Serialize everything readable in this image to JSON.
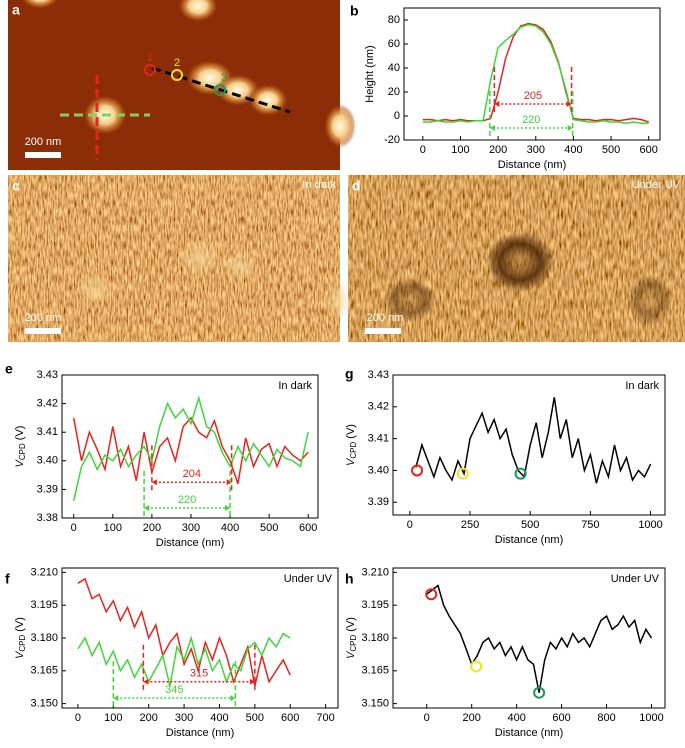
{
  "images": {
    "a": {
      "panel": "a",
      "scale_bar": "200 nm",
      "points": [
        "1",
        "2",
        "3"
      ]
    },
    "c": {
      "panel": "c",
      "note": "In dark",
      "scale_bar": "200 nm"
    },
    "d": {
      "panel": "d",
      "note": "Under UV",
      "scale_bar": "200 nm"
    }
  },
  "chart_data": [
    {
      "type": "line",
      "panel": "b",
      "xlabel": "Distance (nm)",
      "ylabel": "Height (nm)",
      "xlim": [
        -50,
        630
      ],
      "ylim": [
        -20,
        90
      ],
      "xticks": [
        0,
        100,
        200,
        300,
        400,
        500,
        600
      ],
      "yticks": [
        -20,
        0,
        20,
        40,
        60,
        80
      ],
      "x": [
        0,
        20,
        40,
        60,
        80,
        100,
        120,
        140,
        160,
        180,
        200,
        220,
        240,
        260,
        280,
        300,
        320,
        340,
        360,
        380,
        400,
        420,
        440,
        460,
        480,
        500,
        520,
        540,
        560,
        580,
        600
      ],
      "series": [
        {
          "color": "#e8231f",
          "values": [
            -3,
            -3,
            -4,
            -3,
            -4,
            -3,
            -4,
            -4,
            -4,
            -2,
            20,
            48,
            66,
            75,
            77,
            76,
            72,
            62,
            45,
            20,
            -2,
            -3,
            -3,
            -4,
            -3,
            -3,
            -4,
            -3,
            -2,
            -3,
            -5
          ]
        },
        {
          "color": "#3ed63a",
          "values": [
            -5,
            -5,
            -4,
            -5,
            -5,
            -4,
            -5,
            -4,
            -4,
            30,
            57,
            63,
            68,
            74,
            76,
            75,
            70,
            60,
            44,
            22,
            -3,
            -4,
            -5,
            -5,
            -4,
            -5,
            -5,
            -6,
            -5,
            -6,
            -6
          ]
        }
      ],
      "annotations": [
        {
          "width": 205,
          "x0": 190,
          "x1": 395,
          "y": 10,
          "color": "#e8231f"
        },
        {
          "width": 220,
          "x0": 178,
          "x1": 398,
          "y": -10,
          "color": "#3ed63a"
        }
      ]
    },
    {
      "type": "line",
      "panel": "e",
      "note": "In dark",
      "xlabel": "Distance (nm)",
      "ylabel": [
        "V",
        "CPD",
        "(V)"
      ],
      "xlim": [
        -30,
        625
      ],
      "ylim": [
        3.38,
        3.43
      ],
      "xticks": [
        0,
        100,
        200,
        300,
        400,
        500,
        600
      ],
      "yticks": [
        3.38,
        3.39,
        {
          "value": 3.4,
          "label": "3.40"
        },
        3.41,
        3.42,
        3.43
      ],
      "x": [
        0,
        20,
        40,
        60,
        80,
        100,
        120,
        140,
        160,
        180,
        200,
        220,
        240,
        260,
        280,
        300,
        320,
        340,
        360,
        380,
        400,
        420,
        440,
        460,
        480,
        500,
        520,
        540,
        560,
        580,
        600
      ],
      "series": [
        {
          "color": "#e8231f",
          "values": [
            3.415,
            3.4,
            3.41,
            3.404,
            3.397,
            3.412,
            3.398,
            3.405,
            3.393,
            3.41,
            3.396,
            3.405,
            3.408,
            3.4,
            3.412,
            3.415,
            3.41,
            3.408,
            3.414,
            3.405,
            3.4,
            3.392,
            3.408,
            3.398,
            3.404,
            3.406,
            3.398,
            3.405,
            3.402,
            3.4,
            3.403
          ]
        },
        {
          "color": "#3ed63a",
          "values": [
            3.386,
            3.398,
            3.403,
            3.397,
            3.402,
            3.4,
            3.404,
            3.398,
            3.402,
            3.405,
            3.4,
            3.412,
            3.42,
            3.415,
            3.418,
            3.413,
            3.422,
            3.412,
            3.41,
            3.403,
            3.398,
            3.405,
            3.4,
            3.406,
            3.402,
            3.398,
            3.404,
            3.401,
            3.4,
            3.398,
            3.41
          ]
        }
      ],
      "annotations": [
        {
          "width": 204,
          "x0": 200,
          "x1": 404,
          "y": 3.3925,
          "color": "#e8231f"
        },
        {
          "width": 220,
          "x0": 180,
          "x1": 400,
          "y": 3.3835,
          "color": "#3ed63a"
        }
      ]
    },
    {
      "type": "line",
      "panel": "g",
      "note": "In dark",
      "xlabel": "Distance (nm)",
      "ylabel": [
        "V",
        "CPD",
        "(V)"
      ],
      "xlim": [
        -70,
        1060
      ],
      "ylim": [
        3.386,
        3.43
      ],
      "xticks": [
        0,
        250,
        500,
        750,
        1000
      ],
      "yticks": [
        3.39,
        {
          "value": 3.4,
          "label": "3.40"
        },
        3.41,
        3.42,
        3.43
      ],
      "x": [
        25,
        50,
        75,
        100,
        125,
        150,
        175,
        200,
        225,
        250,
        275,
        300,
        325,
        350,
        375,
        400,
        425,
        450,
        475,
        500,
        525,
        550,
        575,
        600,
        625,
        650,
        675,
        700,
        725,
        750,
        775,
        800,
        825,
        850,
        875,
        900,
        925,
        950,
        975,
        1000
      ],
      "series": [
        {
          "color": "#000000",
          "values": [
            3.401,
            3.408,
            3.403,
            3.398,
            3.404,
            3.4,
            3.397,
            3.403,
            3.399,
            3.41,
            3.414,
            3.418,
            3.412,
            3.416,
            3.41,
            3.413,
            3.405,
            3.4,
            3.398,
            3.408,
            3.415,
            3.404,
            3.412,
            3.423,
            3.41,
            3.416,
            3.404,
            3.41,
            3.4,
            3.405,
            3.396,
            3.403,
            3.398,
            3.408,
            3.4,
            3.404,
            3.397,
            3.4,
            3.398,
            3.402
          ]
        }
      ],
      "markers": [
        {
          "x": 30,
          "y": 3.4,
          "color": "#e8231f"
        },
        {
          "x": 220,
          "y": 3.399,
          "color": "#f2e21b"
        },
        {
          "x": 460,
          "y": 3.399,
          "color": "#1a9a5a"
        }
      ]
    },
    {
      "type": "line",
      "panel": "f",
      "note": "Under UV",
      "xlabel": "Distance (nm)",
      "ylabel": [
        "V",
        "CPD",
        "(V)"
      ],
      "xlim": [
        -45,
        735
      ],
      "ylim": [
        3.148,
        3.212
      ],
      "xticks": [
        0,
        100,
        200,
        300,
        400,
        500,
        600,
        700
      ],
      "yticks": [
        {
          "value": 3.15,
          "label": "3.150"
        },
        3.165,
        {
          "value": 3.18,
          "label": "3.180"
        },
        3.195,
        {
          "value": 3.21,
          "label": "3.210"
        }
      ],
      "x": [
        0,
        20,
        40,
        60,
        80,
        100,
        120,
        140,
        160,
        180,
        200,
        220,
        240,
        260,
        280,
        300,
        320,
        340,
        360,
        380,
        400,
        420,
        440,
        460,
        480,
        500,
        520,
        540,
        560,
        580,
        600
      ],
      "series": [
        {
          "color": "#e8231f",
          "values": [
            3.205,
            3.207,
            3.198,
            3.2,
            3.192,
            3.197,
            3.188,
            3.194,
            3.185,
            3.192,
            3.18,
            3.186,
            3.172,
            3.178,
            3.182,
            3.168,
            3.175,
            3.165,
            3.178,
            3.17,
            3.18,
            3.172,
            3.16,
            3.168,
            3.176,
            3.158,
            3.172,
            3.16,
            3.165,
            3.17,
            3.163
          ]
        },
        {
          "color": "#3ed63a",
          "values": [
            3.175,
            3.18,
            3.172,
            3.178,
            3.168,
            3.174,
            3.165,
            3.17,
            3.162,
            3.168,
            3.16,
            3.166,
            3.172,
            3.158,
            3.176,
            3.17,
            3.18,
            3.168,
            3.175,
            3.165,
            3.17,
            3.16,
            3.168,
            3.165,
            3.175,
            3.178,
            3.172,
            3.18,
            3.176,
            3.182,
            3.18
          ]
        }
      ],
      "annotations": [
        {
          "width": 315,
          "x0": 185,
          "x1": 500,
          "y": 3.16,
          "color": "#e8231f"
        },
        {
          "width": 345,
          "x0": 100,
          "x1": 445,
          "y": 3.1525,
          "color": "#3ed63a"
        }
      ]
    },
    {
      "type": "line",
      "panel": "h",
      "note": "Under UV",
      "xlabel": "Distance (nm)",
      "ylabel": [
        "V",
        "CPD",
        "(V)"
      ],
      "xlim": [
        -150,
        1060
      ],
      "ylim": [
        3.148,
        3.212
      ],
      "xticks": [
        0,
        200,
        400,
        600,
        800,
        1000
      ],
      "yticks": [
        {
          "value": 3.15,
          "label": "3.150"
        },
        3.165,
        {
          "value": 3.18,
          "label": "3.180"
        },
        3.195,
        {
          "value": 3.21,
          "label": "3.210"
        }
      ],
      "x": [
        0,
        25,
        50,
        75,
        100,
        125,
        150,
        175,
        200,
        225,
        250,
        275,
        300,
        325,
        350,
        375,
        400,
        425,
        450,
        475,
        500,
        525,
        550,
        575,
        600,
        625,
        650,
        675,
        700,
        725,
        750,
        775,
        800,
        825,
        850,
        875,
        900,
        925,
        950,
        975,
        1000
      ],
      "series": [
        {
          "color": "#000000",
          "values": [
            3.2,
            3.202,
            3.204,
            3.195,
            3.19,
            3.186,
            3.182,
            3.175,
            3.168,
            3.172,
            3.178,
            3.18,
            3.175,
            3.178,
            3.172,
            3.176,
            3.17,
            3.176,
            3.17,
            3.168,
            3.155,
            3.17,
            3.178,
            3.175,
            3.18,
            3.176,
            3.182,
            3.178,
            3.18,
            3.176,
            3.182,
            3.188,
            3.19,
            3.184,
            3.186,
            3.19,
            3.185,
            3.188,
            3.178,
            3.184,
            3.18
          ]
        }
      ],
      "markers": [
        {
          "x": 20,
          "y": 3.2,
          "color": "#e8231f"
        },
        {
          "x": 220,
          "y": 3.167,
          "color": "#f2e21b"
        },
        {
          "x": 500,
          "y": 3.155,
          "color": "#1a9a5a"
        }
      ]
    }
  ]
}
